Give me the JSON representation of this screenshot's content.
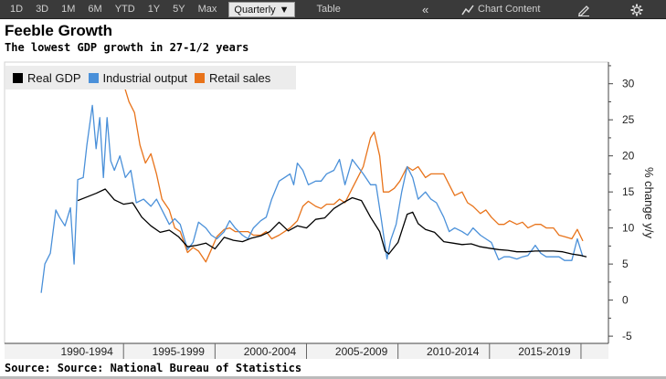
{
  "toolbar": {
    "ranges": [
      "1D",
      "3D",
      "1M",
      "6M",
      "YTD",
      "1Y",
      "5Y",
      "Max"
    ],
    "period_label": "Quarterly",
    "dropdown_glyph": "▼",
    "table_label": "Table",
    "collapse_glyph": "«",
    "chart_content_icon": "chart-icon",
    "chart_content_label": "Chart Content",
    "edit_icon": "edit-icon",
    "settings_icon": "gear-icon"
  },
  "footer": {
    "source": "Source: Source: National Bureau of Statistics"
  },
  "chart_data": {
    "type": "line",
    "title": "Feeble Growth",
    "subtitle": "The lowest GDP growth in 27-1/2  years",
    "ylabel": "% change y/y",
    "ylim": [
      -6,
      33
    ],
    "yticks": [
      -5,
      0,
      5,
      10,
      15,
      20,
      25,
      30
    ],
    "ytick_labels": [
      "-5",
      "0",
      "5",
      "10",
      "15",
      "20",
      "25",
      "30"
    ],
    "xlim": [
      1988,
      2021
    ],
    "xticks": [
      {
        "label": "1990-1994",
        "center": 1992.5
      },
      {
        "label": "1995-1999",
        "center": 1997.5
      },
      {
        "label": "2000-2004",
        "center": 2002.5
      },
      {
        "label": "2005-2009",
        "center": 2007.5
      },
      {
        "label": "2010-2014",
        "center": 2012.5
      },
      {
        "label": "2015-2019",
        "center": 2017.5
      }
    ],
    "xbands": [
      1994.5,
      1999.5,
      2004.5,
      2009.5,
      2014.5,
      2019.5
    ],
    "legend_position": "top-left",
    "series": [
      {
        "name": "Real GDP",
        "color": "#000000",
        "points": [
          [
            1992.0,
            13.8
          ],
          [
            1992.5,
            14.3
          ],
          [
            1993.0,
            14.8
          ],
          [
            1993.5,
            15.4
          ],
          [
            1994.0,
            13.9
          ],
          [
            1994.5,
            13.3
          ],
          [
            1995.0,
            13.5
          ],
          [
            1995.5,
            11.5
          ],
          [
            1996.0,
            10.3
          ],
          [
            1996.5,
            9.4
          ],
          [
            1997.0,
            9.7
          ],
          [
            1997.5,
            8.8
          ],
          [
            1998.0,
            7.4
          ],
          [
            1998.5,
            7.6
          ],
          [
            1999.0,
            7.9
          ],
          [
            1999.5,
            7.1
          ],
          [
            2000.0,
            8.7
          ],
          [
            2000.5,
            8.3
          ],
          [
            2001.0,
            8.1
          ],
          [
            2001.5,
            8.6
          ],
          [
            2002.0,
            8.9
          ],
          [
            2002.5,
            9.5
          ],
          [
            2003.0,
            10.8
          ],
          [
            2003.5,
            9.6
          ],
          [
            2004.0,
            10.3
          ],
          [
            2004.5,
            10.0
          ],
          [
            2005.0,
            11.2
          ],
          [
            2005.5,
            11.4
          ],
          [
            2006.0,
            12.7
          ],
          [
            2006.5,
            13.5
          ],
          [
            2007.0,
            14.2
          ],
          [
            2007.5,
            13.8
          ],
          [
            2008.0,
            11.5
          ],
          [
            2008.5,
            9.5
          ],
          [
            2008.8,
            6.8
          ],
          [
            2009.0,
            6.4
          ],
          [
            2009.5,
            8.0
          ],
          [
            2010.0,
            11.9
          ],
          [
            2010.3,
            12.2
          ],
          [
            2010.6,
            10.6
          ],
          [
            2011.0,
            9.8
          ],
          [
            2011.5,
            9.4
          ],
          [
            2012.0,
            8.1
          ],
          [
            2012.5,
            7.9
          ],
          [
            2013.0,
            7.7
          ],
          [
            2013.5,
            7.8
          ],
          [
            2014.0,
            7.4
          ],
          [
            2014.5,
            7.2
          ],
          [
            2015.0,
            7.0
          ],
          [
            2015.5,
            6.9
          ],
          [
            2016.0,
            6.7
          ],
          [
            2016.5,
            6.7
          ],
          [
            2017.0,
            6.8
          ],
          [
            2017.5,
            6.8
          ],
          [
            2018.0,
            6.8
          ],
          [
            2018.5,
            6.7
          ],
          [
            2019.0,
            6.4
          ],
          [
            2019.5,
            6.2
          ],
          [
            2019.8,
            6.0
          ]
        ]
      },
      {
        "name": "Industrial output",
        "color": "#4a90d9",
        "points": [
          [
            1990.0,
            1.0
          ],
          [
            1990.2,
            5.0
          ],
          [
            1990.5,
            6.5
          ],
          [
            1990.8,
            12.5
          ],
          [
            1991.0,
            11.5
          ],
          [
            1991.3,
            10.3
          ],
          [
            1991.6,
            12.8
          ],
          [
            1991.8,
            5.0
          ],
          [
            1992.0,
            16.7
          ],
          [
            1992.3,
            17.0
          ],
          [
            1992.5,
            21.5
          ],
          [
            1992.8,
            27.0
          ],
          [
            1993.0,
            21.0
          ],
          [
            1993.2,
            25.3
          ],
          [
            1993.4,
            17.0
          ],
          [
            1993.6,
            25.3
          ],
          [
            1993.8,
            19.3
          ],
          [
            1994.0,
            18.0
          ],
          [
            1994.3,
            20.0
          ],
          [
            1994.6,
            17.0
          ],
          [
            1994.9,
            18.0
          ],
          [
            1995.2,
            13.5
          ],
          [
            1995.6,
            14.0
          ],
          [
            1996.0,
            13.0
          ],
          [
            1996.3,
            14.0
          ],
          [
            1996.6,
            12.5
          ],
          [
            1997.0,
            10.5
          ],
          [
            1997.3,
            11.3
          ],
          [
            1997.6,
            10.5
          ],
          [
            1998.0,
            7.0
          ],
          [
            1998.3,
            8.0
          ],
          [
            1998.6,
            10.8
          ],
          [
            1999.0,
            10.0
          ],
          [
            1999.3,
            9.0
          ],
          [
            1999.6,
            8.5
          ],
          [
            2000.0,
            9.5
          ],
          [
            2000.3,
            11.0
          ],
          [
            2000.6,
            10.0
          ],
          [
            2001.0,
            9.0
          ],
          [
            2001.3,
            8.5
          ],
          [
            2001.6,
            10.0
          ],
          [
            2002.0,
            11.0
          ],
          [
            2002.3,
            11.5
          ],
          [
            2002.6,
            14.0
          ],
          [
            2003.0,
            16.5
          ],
          [
            2003.3,
            17.0
          ],
          [
            2003.6,
            17.5
          ],
          [
            2003.8,
            16.0
          ],
          [
            2004.0,
            19.0
          ],
          [
            2004.3,
            18.0
          ],
          [
            2004.6,
            16.0
          ],
          [
            2005.0,
            16.5
          ],
          [
            2005.3,
            16.5
          ],
          [
            2005.6,
            17.5
          ],
          [
            2006.0,
            18.0
          ],
          [
            2006.3,
            19.5
          ],
          [
            2006.6,
            16.0
          ],
          [
            2007.0,
            19.5
          ],
          [
            2007.3,
            18.5
          ],
          [
            2007.6,
            17.5
          ],
          [
            2008.0,
            16.0
          ],
          [
            2008.3,
            16.0
          ],
          [
            2008.6,
            11.0
          ],
          [
            2008.9,
            5.7
          ],
          [
            2009.1,
            8.3
          ],
          [
            2009.4,
            10.5
          ],
          [
            2009.7,
            15.0
          ],
          [
            2010.0,
            18.5
          ],
          [
            2010.3,
            17.0
          ],
          [
            2010.6,
            14.0
          ],
          [
            2011.0,
            15.0
          ],
          [
            2011.3,
            14.0
          ],
          [
            2011.6,
            13.5
          ],
          [
            2012.0,
            11.5
          ],
          [
            2012.3,
            9.5
          ],
          [
            2012.6,
            10.0
          ],
          [
            2013.0,
            9.5
          ],
          [
            2013.3,
            9.0
          ],
          [
            2013.6,
            10.0
          ],
          [
            2014.0,
            9.0
          ],
          [
            2014.3,
            8.5
          ],
          [
            2014.6,
            8.0
          ],
          [
            2015.0,
            5.6
          ],
          [
            2015.3,
            6.0
          ],
          [
            2015.6,
            6.0
          ],
          [
            2016.0,
            5.7
          ],
          [
            2016.3,
            6.0
          ],
          [
            2016.6,
            6.2
          ],
          [
            2017.0,
            7.6
          ],
          [
            2017.3,
            6.5
          ],
          [
            2017.6,
            6.0
          ],
          [
            2018.0,
            6.0
          ],
          [
            2018.3,
            6.0
          ],
          [
            2018.6,
            5.5
          ],
          [
            2019.0,
            5.5
          ],
          [
            2019.3,
            8.5
          ],
          [
            2019.6,
            6.0
          ]
        ]
      },
      {
        "name": "Retail sales",
        "color": "#e8731a",
        "points": [
          [
            1994.5,
            30.0
          ],
          [
            1994.8,
            27.5
          ],
          [
            1995.1,
            26.0
          ],
          [
            1995.4,
            21.5
          ],
          [
            1995.7,
            19.0
          ],
          [
            1996.0,
            20.3
          ],
          [
            1996.3,
            17.5
          ],
          [
            1996.6,
            14.0
          ],
          [
            1997.0,
            12.5
          ],
          [
            1997.3,
            10.0
          ],
          [
            1997.6,
            9.5
          ],
          [
            1998.0,
            6.6
          ],
          [
            1998.3,
            7.3
          ],
          [
            1998.6,
            6.8
          ],
          [
            1999.0,
            5.3
          ],
          [
            1999.3,
            7.0
          ],
          [
            1999.6,
            8.8
          ],
          [
            2000.0,
            9.8
          ],
          [
            2000.3,
            10.0
          ],
          [
            2000.6,
            9.5
          ],
          [
            2001.0,
            9.5
          ],
          [
            2001.3,
            9.5
          ],
          [
            2001.6,
            9.0
          ],
          [
            2002.0,
            9.0
          ],
          [
            2002.3,
            9.5
          ],
          [
            2002.6,
            8.5
          ],
          [
            2003.0,
            9.0
          ],
          [
            2003.3,
            9.5
          ],
          [
            2003.6,
            10.0
          ],
          [
            2004.0,
            11.0
          ],
          [
            2004.3,
            13.0
          ],
          [
            2004.6,
            13.7
          ],
          [
            2005.0,
            13.0
          ],
          [
            2005.3,
            12.7
          ],
          [
            2005.6,
            13.3
          ],
          [
            2006.0,
            13.3
          ],
          [
            2006.3,
            14.0
          ],
          [
            2006.6,
            13.5
          ],
          [
            2007.0,
            15.5
          ],
          [
            2007.3,
            17.0
          ],
          [
            2007.6,
            18.5
          ],
          [
            2008.0,
            22.5
          ],
          [
            2008.2,
            23.3
          ],
          [
            2008.5,
            20.0
          ],
          [
            2008.7,
            15.0
          ],
          [
            2009.0,
            15.0
          ],
          [
            2009.3,
            15.5
          ],
          [
            2009.6,
            16.5
          ],
          [
            2010.0,
            18.5
          ],
          [
            2010.3,
            18.0
          ],
          [
            2010.6,
            18.5
          ],
          [
            2011.0,
            17.0
          ],
          [
            2011.3,
            17.5
          ],
          [
            2011.6,
            17.5
          ],
          [
            2012.0,
            17.5
          ],
          [
            2012.3,
            16.0
          ],
          [
            2012.6,
            14.5
          ],
          [
            2013.0,
            15.0
          ],
          [
            2013.3,
            13.5
          ],
          [
            2013.6,
            13.0
          ],
          [
            2014.0,
            12.0
          ],
          [
            2014.3,
            12.5
          ],
          [
            2014.6,
            11.5
          ],
          [
            2015.0,
            10.5
          ],
          [
            2015.3,
            10.5
          ],
          [
            2015.6,
            11.0
          ],
          [
            2016.0,
            10.5
          ],
          [
            2016.3,
            10.8
          ],
          [
            2016.6,
            10.0
          ],
          [
            2017.0,
            10.5
          ],
          [
            2017.3,
            10.5
          ],
          [
            2017.6,
            10.0
          ],
          [
            2018.0,
            10.0
          ],
          [
            2018.3,
            9.0
          ],
          [
            2018.6,
            8.8
          ],
          [
            2019.0,
            8.5
          ],
          [
            2019.3,
            9.8
          ],
          [
            2019.6,
            8.2
          ]
        ]
      }
    ]
  }
}
